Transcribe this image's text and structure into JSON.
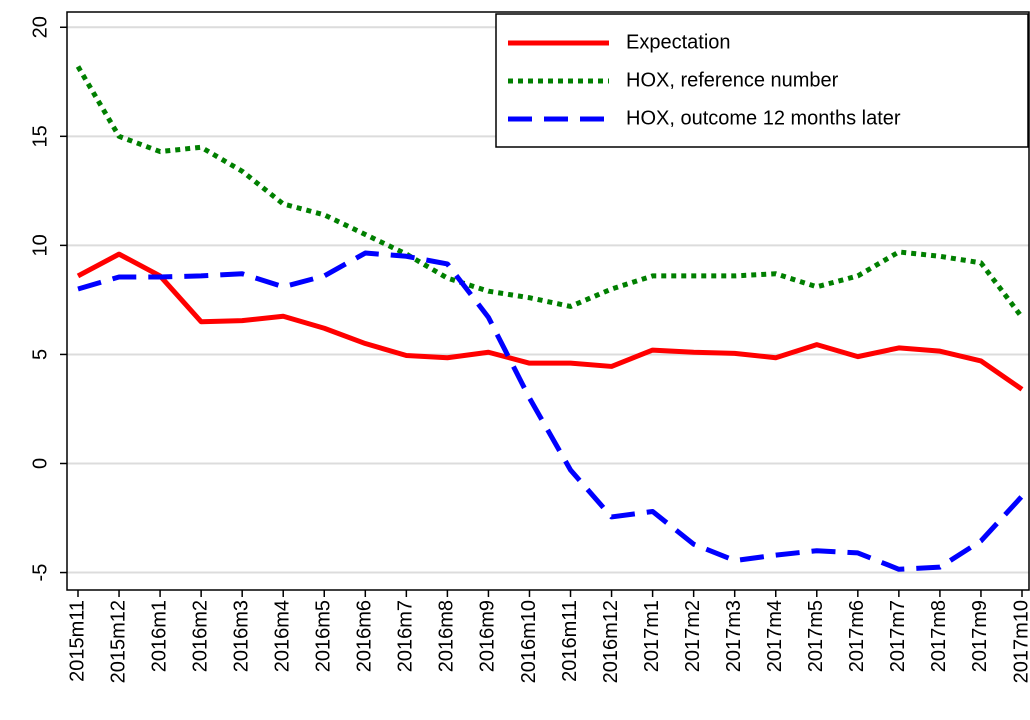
{
  "chart_data": {
    "type": "line",
    "categories": [
      "2015m11",
      "2015m12",
      "2016m1",
      "2016m2",
      "2016m3",
      "2016m4",
      "2016m5",
      "2016m6",
      "2016m7",
      "2016m8",
      "2016m9",
      "2016m10",
      "2016m11",
      "2016m12",
      "2017m1",
      "2017m2",
      "2017m3",
      "2017m4",
      "2017m5",
      "2017m6",
      "2017m7",
      "2017m8",
      "2017m9",
      "2017m10"
    ],
    "series": [
      {
        "name": "Expectation",
        "color": "#ff0000",
        "style": "solid",
        "values": [
          8.6,
          9.6,
          8.6,
          6.5,
          6.55,
          6.75,
          6.2,
          5.5,
          4.95,
          4.85,
          5.1,
          4.6,
          4.6,
          4.45,
          5.2,
          5.1,
          5.05,
          4.85,
          5.45,
          4.9,
          5.3,
          5.15,
          4.7,
          3.4
        ]
      },
      {
        "name": "HOX, reference number",
        "color": "#007f00",
        "style": "dotted",
        "values": [
          18.2,
          15.0,
          14.3,
          14.5,
          13.4,
          11.9,
          11.4,
          10.5,
          9.6,
          8.5,
          7.9,
          7.6,
          7.2,
          8.0,
          8.6,
          8.6,
          8.6,
          8.7,
          8.1,
          8.6,
          9.7,
          9.5,
          9.2,
          6.7
        ]
      },
      {
        "name": "HOX, outcome 12 months later",
        "color": "#0000ff",
        "style": "dashed",
        "values": [
          8.0,
          8.55,
          8.55,
          8.6,
          8.7,
          8.1,
          8.6,
          9.65,
          9.5,
          9.15,
          6.7,
          3.0,
          -0.3,
          -2.45,
          -2.2,
          -3.7,
          -4.45,
          -4.2,
          -4.0,
          -4.1,
          -4.85,
          -4.75,
          -3.55,
          -1.5
        ]
      }
    ],
    "ylim": [
      -5.8,
      20.7
    ],
    "yticks": [
      -5,
      0,
      5,
      10,
      15,
      20
    ],
    "grid": true,
    "legend": "upper right"
  }
}
